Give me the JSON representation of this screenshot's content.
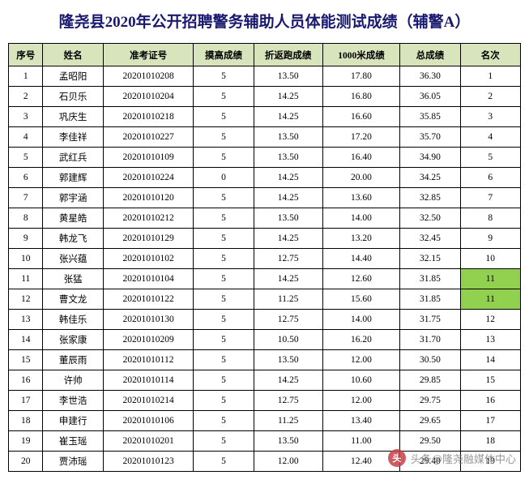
{
  "title": "隆尧县2020年公开招聘警务辅助人员体能测试成绩（辅警A）",
  "columns": [
    "序号",
    "姓名",
    "准考证号",
    "摸高成绩",
    "折返跑成绩",
    "1000米成绩",
    "总成绩",
    "名次"
  ],
  "rows": [
    {
      "seq": "1",
      "name": "孟昭阳",
      "exam": "20201010208",
      "s1": "5",
      "s2": "13.50",
      "s3": "17.80",
      "total": "36.30",
      "rank": "1",
      "hl": false
    },
    {
      "seq": "2",
      "name": "石贝乐",
      "exam": "20201010204",
      "s1": "5",
      "s2": "14.25",
      "s3": "16.80",
      "total": "36.05",
      "rank": "2",
      "hl": false
    },
    {
      "seq": "3",
      "name": "巩庆生",
      "exam": "20201010218",
      "s1": "5",
      "s2": "14.25",
      "s3": "16.60",
      "total": "35.85",
      "rank": "3",
      "hl": false
    },
    {
      "seq": "4",
      "name": "李佳祥",
      "exam": "20201010227",
      "s1": "5",
      "s2": "13.50",
      "s3": "17.20",
      "total": "35.70",
      "rank": "4",
      "hl": false
    },
    {
      "seq": "5",
      "name": "武红兵",
      "exam": "20201010109",
      "s1": "5",
      "s2": "13.50",
      "s3": "16.40",
      "total": "34.90",
      "rank": "5",
      "hl": false
    },
    {
      "seq": "6",
      "name": "郭建辉",
      "exam": "20201010224",
      "s1": "0",
      "s2": "14.25",
      "s3": "20.00",
      "total": "34.25",
      "rank": "6",
      "hl": false
    },
    {
      "seq": "7",
      "name": "郭宇涵",
      "exam": "20201010120",
      "s1": "5",
      "s2": "14.25",
      "s3": "13.60",
      "total": "32.85",
      "rank": "7",
      "hl": false
    },
    {
      "seq": "8",
      "name": "黄星皓",
      "exam": "20201010212",
      "s1": "5",
      "s2": "13.50",
      "s3": "14.00",
      "total": "32.50",
      "rank": "8",
      "hl": false
    },
    {
      "seq": "9",
      "name": "韩龙飞",
      "exam": "20201010129",
      "s1": "5",
      "s2": "14.25",
      "s3": "13.20",
      "total": "32.45",
      "rank": "9",
      "hl": false
    },
    {
      "seq": "10",
      "name": "张兴蕴",
      "exam": "20201010102",
      "s1": "5",
      "s2": "12.75",
      "s3": "14.40",
      "total": "32.15",
      "rank": "10",
      "hl": false
    },
    {
      "seq": "11",
      "name": "张猛",
      "exam": "20201010104",
      "s1": "5",
      "s2": "14.25",
      "s3": "12.60",
      "total": "31.85",
      "rank": "11",
      "hl": true
    },
    {
      "seq": "12",
      "name": "曹文龙",
      "exam": "20201010122",
      "s1": "5",
      "s2": "11.25",
      "s3": "15.60",
      "total": "31.85",
      "rank": "11",
      "hl": true
    },
    {
      "seq": "13",
      "name": "韩佳乐",
      "exam": "20201010130",
      "s1": "5",
      "s2": "12.75",
      "s3": "14.00",
      "total": "31.75",
      "rank": "12",
      "hl": false
    },
    {
      "seq": "14",
      "name": "张家康",
      "exam": "20201010209",
      "s1": "5",
      "s2": "10.50",
      "s3": "16.20",
      "total": "31.70",
      "rank": "13",
      "hl": false
    },
    {
      "seq": "15",
      "name": "董辰雨",
      "exam": "20201010112",
      "s1": "5",
      "s2": "13.50",
      "s3": "12.00",
      "total": "30.50",
      "rank": "14",
      "hl": false
    },
    {
      "seq": "16",
      "name": "许帅",
      "exam": "20201010114",
      "s1": "5",
      "s2": "14.25",
      "s3": "10.60",
      "total": "29.85",
      "rank": "15",
      "hl": false
    },
    {
      "seq": "17",
      "name": "李世浩",
      "exam": "20201010214",
      "s1": "5",
      "s2": "12.75",
      "s3": "12.00",
      "total": "29.75",
      "rank": "16",
      "hl": false
    },
    {
      "seq": "18",
      "name": "申建行",
      "exam": "20201010106",
      "s1": "5",
      "s2": "11.25",
      "s3": "13.40",
      "total": "29.65",
      "rank": "17",
      "hl": false
    },
    {
      "seq": "19",
      "name": "崔玉瑶",
      "exam": "20201010201",
      "s1": "5",
      "s2": "13.50",
      "s3": "11.00",
      "total": "29.50",
      "rank": "18",
      "hl": false
    },
    {
      "seq": "20",
      "name": "贾沛瑶",
      "exam": "20201010123",
      "s1": "5",
      "s2": "12.00",
      "s3": "12.40",
      "total": "29.40",
      "rank": "19",
      "hl": false
    }
  ],
  "watermark": {
    "icon": "头",
    "text": "头条@隆尧融媒体中心"
  },
  "colors": {
    "header_bg": "#d8e4bc",
    "highlight_bg": "#92d050",
    "title_color": "#191970",
    "border": "#000000"
  }
}
